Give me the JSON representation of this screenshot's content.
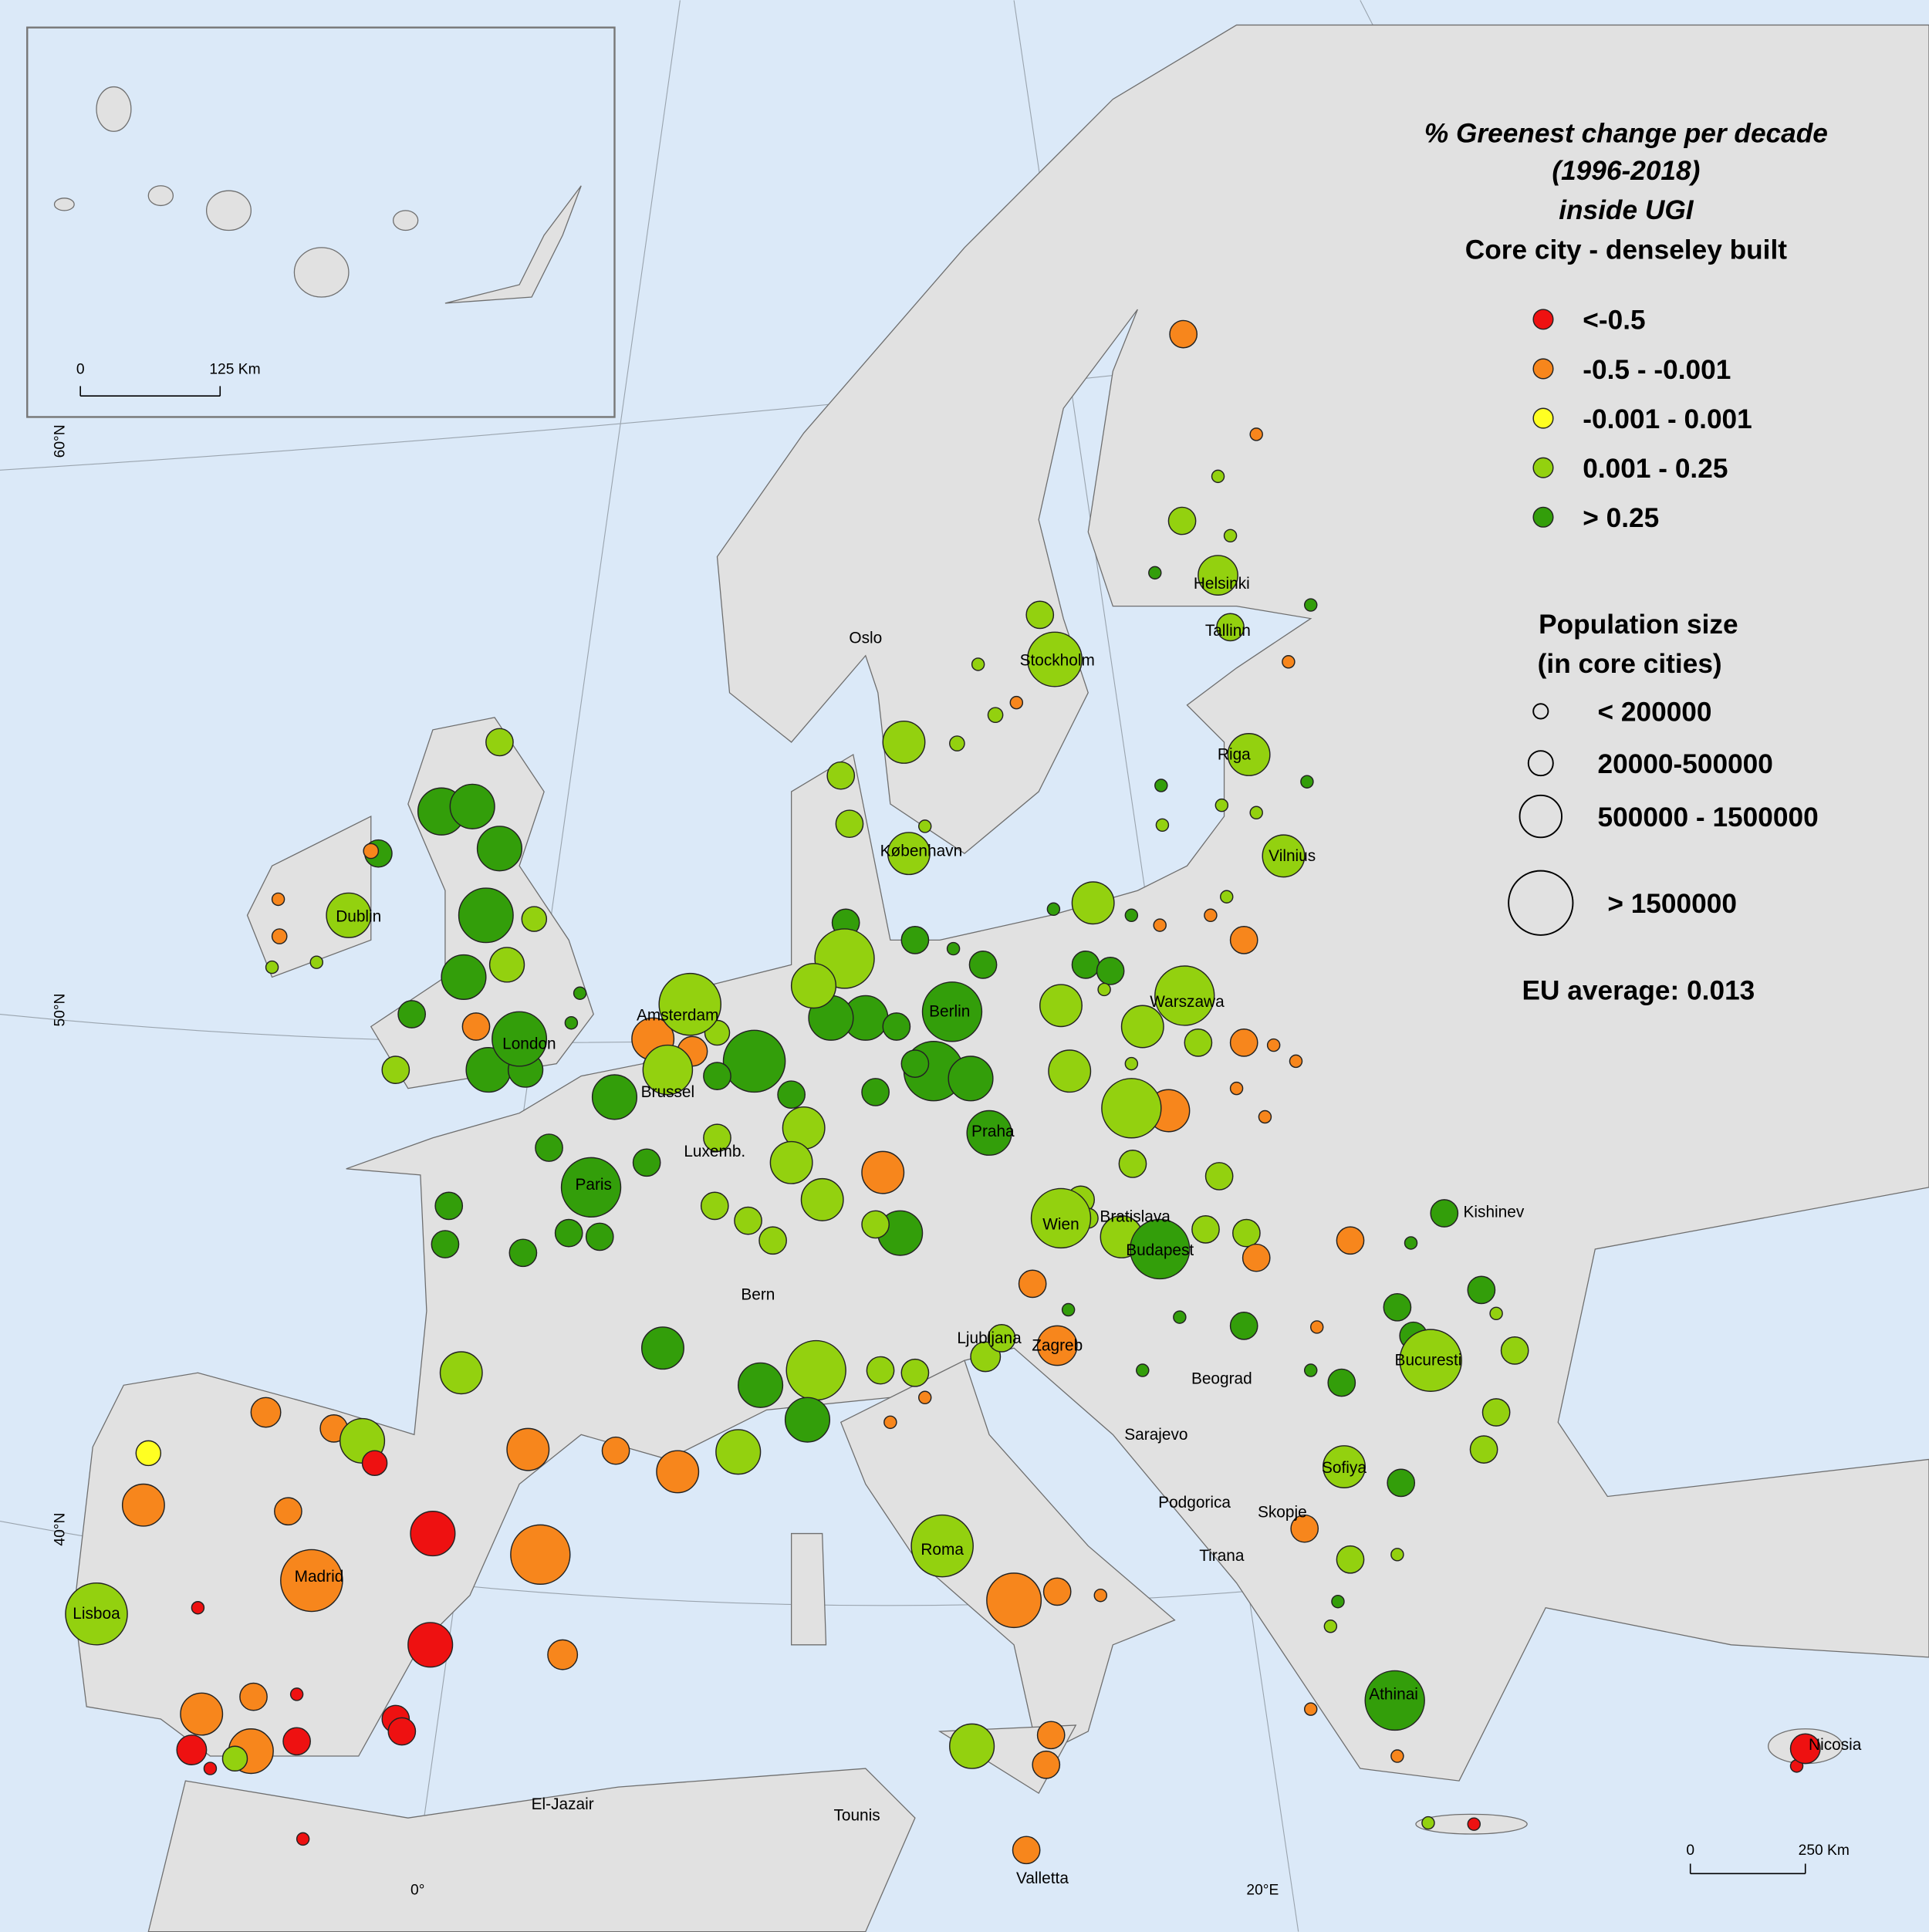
{
  "legend": {
    "title": [
      "% Greenest change per decade",
      "(1996-2018)",
      "inside UGI",
      "Core city - denseley built"
    ],
    "classes": [
      {
        "label": "<-0.5",
        "color": "#ee1111"
      },
      {
        "label": "-0.5 - -0.001",
        "color": "#f7861c"
      },
      {
        "label": "-0.001 - 0.001",
        "color": "#ffff22"
      },
      {
        "label": "0.001 - 0.25",
        "color": "#93d10f"
      },
      {
        "label": "> 0.25",
        "color": "#339e0a"
      }
    ],
    "size_title": [
      "Population size",
      "(in core cities)"
    ],
    "sizes": [
      "< 200000",
      "20000-500000",
      "500000 - 1500000",
      "> 1500000"
    ],
    "eu_average": "EU average: 0.013"
  },
  "cities": [
    "Oslo",
    "Stockholm",
    "Helsinki",
    "Tallinn",
    "Riga",
    "Vilnius",
    "København",
    "Dublin",
    "Amsterdam",
    "London",
    "Brussel",
    "Luxemb.",
    "Paris",
    "Berlin",
    "Praha",
    "Warszawa",
    "Bratislava",
    "Wien",
    "Budapest",
    "Kishinev",
    "Bern",
    "Ljubljana",
    "Zagreb",
    "Beograd",
    "Bucuresti",
    "Sarajevo",
    "Sofiya",
    "Podgorica",
    "Skopje",
    "Tirana",
    "Roma",
    "Madrid",
    "Lisboa",
    "Athinai",
    "Nicosia",
    "El-Jazair",
    "Tounis",
    "Valletta"
  ],
  "graticule": [
    "60°N",
    "50°N",
    "40°N",
    "0°",
    "20°E"
  ],
  "scale_bars": [
    [
      "0",
      "125 Km"
    ],
    [
      "0",
      "250 Km"
    ]
  ]
}
